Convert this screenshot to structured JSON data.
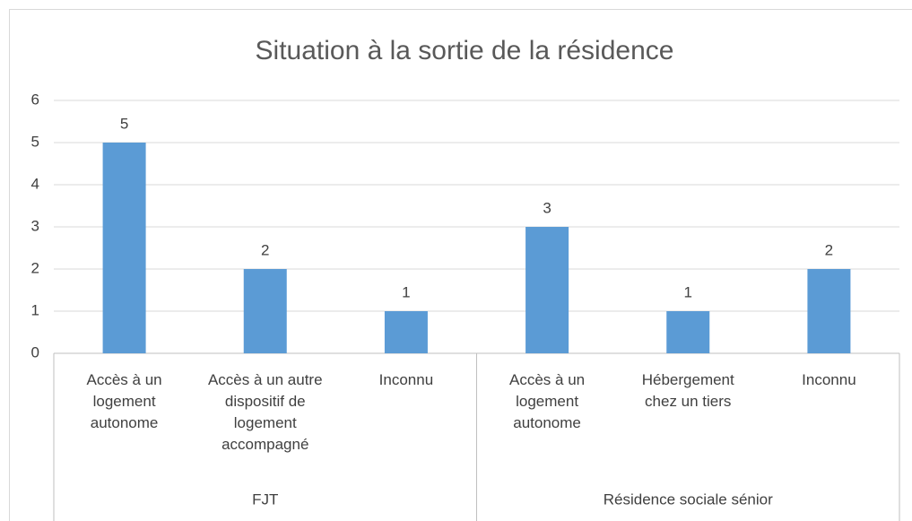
{
  "chart_data": {
    "type": "bar",
    "title": "Situation à la sortie de la résidence",
    "categories": [
      "Accès à un logement autonome",
      "Accès à un autre dispositif de logement accompagné",
      "Inconnu",
      "Accès à un logement autonome",
      "Hébergement chez un tiers",
      "Inconnu"
    ],
    "groups": [
      {
        "label": "FJT",
        "span": 3
      },
      {
        "label": "Résidence sociale sénior",
        "span": 3
      }
    ],
    "values": [
      5,
      2,
      1,
      3,
      1,
      2
    ],
    "color": "#5b9bd5",
    "ylim": [
      0,
      6
    ],
    "yticks": [
      0,
      1,
      2,
      3,
      4,
      5,
      6
    ],
    "grid": true
  }
}
